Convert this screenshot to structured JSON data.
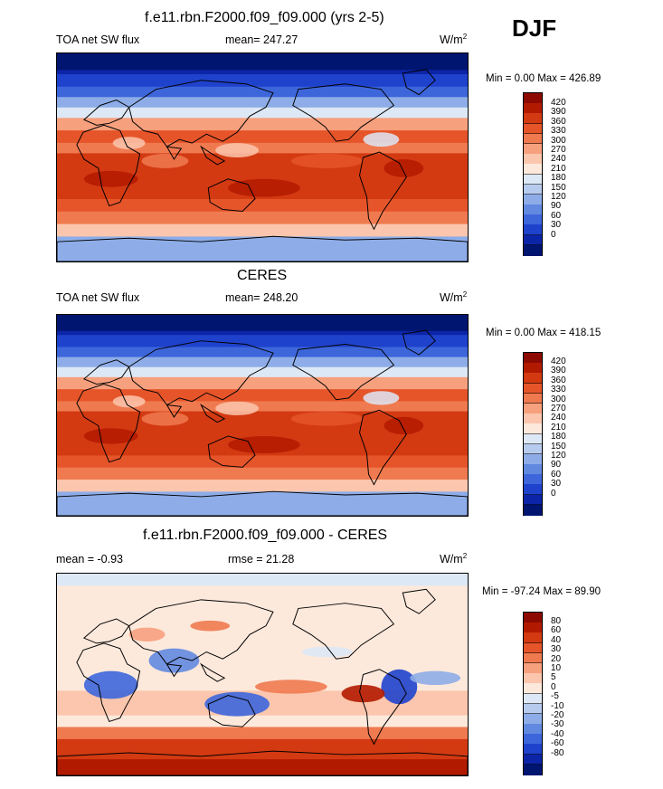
{
  "season": "DJF",
  "panels": [
    {
      "id": "model",
      "title": "f.e11.rbn.F2000.f09_f09.000 (yrs 2-5)",
      "left_label": "TOA net SW flux",
      "stat_label": "mean= 247.27",
      "units": "W/m",
      "units_sup": "2",
      "range_label": "Min =   0.00 Max = 426.89",
      "levels": [
        "420",
        "390",
        "360",
        "330",
        "300",
        "270",
        "240",
        "210",
        "180",
        "150",
        "120",
        "90",
        "60",
        "30",
        "0"
      ],
      "colors": [
        "#8c0a00",
        "#b21a00",
        "#d33a12",
        "#e6552a",
        "#f07a50",
        "#f7a07e",
        "#fbc6ad",
        "#fde9dc",
        "#dde8f6",
        "#b7cbef",
        "#8eade8",
        "#6289e0",
        "#3d66db",
        "#1f42cc",
        "#0c25a8",
        "#001570"
      ]
    },
    {
      "id": "obs",
      "title": "CERES",
      "left_label": "TOA net SW flux",
      "stat_label": "mean= 248.20",
      "units": "W/m",
      "units_sup": "2",
      "range_label": "Min =   0.00 Max = 418.15",
      "levels": [
        "420",
        "390",
        "360",
        "330",
        "300",
        "270",
        "240",
        "210",
        "180",
        "150",
        "120",
        "90",
        "60",
        "30",
        "0"
      ],
      "colors": [
        "#8c0a00",
        "#b21a00",
        "#d33a12",
        "#e6552a",
        "#f07a50",
        "#f7a07e",
        "#fbc6ad",
        "#fde9dc",
        "#dde8f6",
        "#b7cbef",
        "#8eade8",
        "#6289e0",
        "#3d66db",
        "#1f42cc",
        "#0c25a8",
        "#001570"
      ]
    },
    {
      "id": "diff",
      "title": "f.e11.rbn.F2000.f09_f09.000 - CERES",
      "left_label": "mean =  -0.93",
      "stat_label": "rmse =  21.28",
      "units": "W/m",
      "units_sup": "2",
      "range_label": "Min = -97.24 Max =  89.90",
      "levels": [
        "80",
        "60",
        "40",
        "30",
        "20",
        "10",
        "5",
        "0",
        "-5",
        "-10",
        "-20",
        "-30",
        "-40",
        "-60",
        "-80"
      ],
      "colors": [
        "#8c0a00",
        "#b21a00",
        "#d33a12",
        "#e6552a",
        "#f07a50",
        "#f7a07e",
        "#fbc6ad",
        "#fde9dc",
        "#dde8f6",
        "#b7cbef",
        "#8eade8",
        "#6289e0",
        "#3d66db",
        "#1f42cc",
        "#0c25a8",
        "#001570"
      ]
    }
  ]
}
